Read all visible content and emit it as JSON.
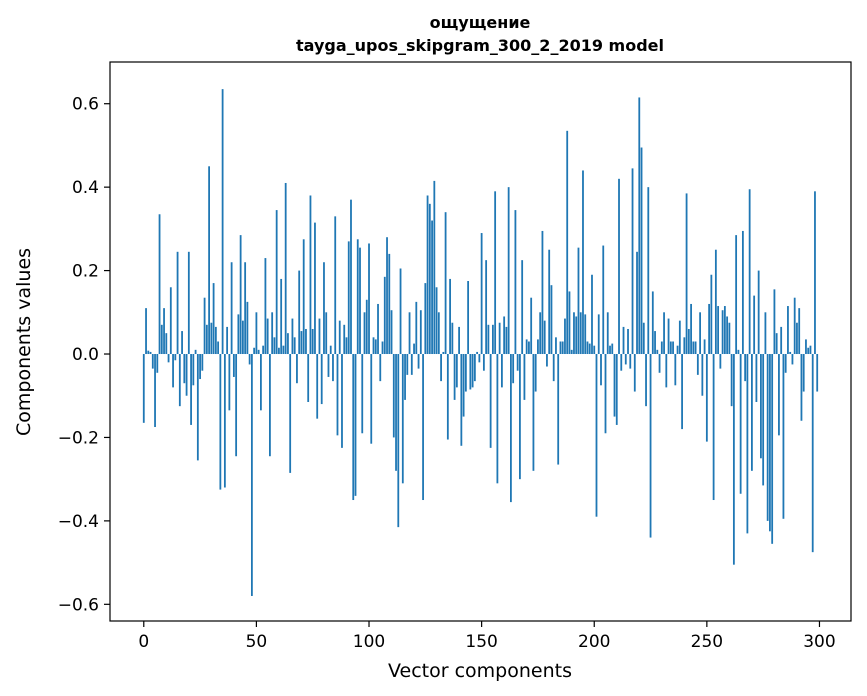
{
  "chart_data": {
    "type": "bar",
    "title_line1": "ощущение",
    "title_line2": "tayga_upos_skipgram_300_2_2019 model",
    "xlabel": "Vector components",
    "ylabel": "Components values",
    "xlim": [
      -15,
      314
    ],
    "ylim": [
      -0.64,
      0.7
    ],
    "xticks": [
      "0",
      "50",
      "100",
      "150",
      "200",
      "250",
      "300"
    ],
    "yticks": [
      "−0.6",
      "−0.4",
      "−0.2",
      "0.0",
      "0.2",
      "0.4",
      "0.6"
    ],
    "bar_color": "#1f77b4",
    "values": [
      -0.165,
      0.11,
      0.008,
      0.005,
      -0.035,
      -0.175,
      -0.045,
      0.335,
      0.07,
      0.11,
      0.05,
      -0.02,
      0.16,
      -0.08,
      -0.015,
      0.245,
      -0.125,
      0.055,
      -0.07,
      -0.1,
      0.245,
      -0.17,
      -0.075,
      0.01,
      -0.255,
      -0.06,
      -0.04,
      0.135,
      0.07,
      0.45,
      0.075,
      0.17,
      0.065,
      0.03,
      -0.325,
      0.635,
      -0.32,
      0.065,
      -0.135,
      0.22,
      -0.055,
      -0.245,
      0.095,
      0.285,
      0.08,
      0.22,
      0.125,
      -0.025,
      -0.58,
      0.015,
      0.1,
      0.01,
      -0.135,
      0.02,
      0.23,
      0.085,
      -0.245,
      0.1,
      0.04,
      0.345,
      0.015,
      0.18,
      0.02,
      0.41,
      0.05,
      -0.285,
      0.085,
      0.04,
      -0.07,
      0.2,
      0.055,
      0.275,
      0.06,
      -0.115,
      0.38,
      0.06,
      0.315,
      -0.155,
      0.085,
      -0.12,
      0.22,
      0.1,
      -0.055,
      0.02,
      -0.065,
      0.33,
      -0.195,
      0.08,
      -0.225,
      0.07,
      0.04,
      0.27,
      0.37,
      -0.35,
      -0.34,
      0.275,
      0.255,
      -0.19,
      0.1,
      0.13,
      0.265,
      -0.215,
      0.04,
      0.035,
      0.12,
      -0.065,
      0.03,
      0.185,
      0.28,
      0.24,
      0.105,
      -0.2,
      -0.28,
      -0.415,
      0.205,
      -0.31,
      -0.11,
      -0.05,
      0.1,
      -0.05,
      0.025,
      0.125,
      -0.035,
      0.105,
      -0.35,
      0.17,
      0.38,
      0.36,
      0.32,
      0.415,
      0.16,
      0.1,
      -0.065,
      0.005,
      0.34,
      -0.205,
      0.18,
      0.075,
      -0.11,
      -0.08,
      0.065,
      -0.22,
      -0.15,
      -0.09,
      0.175,
      -0.085,
      -0.08,
      -0.065,
      0.005,
      -0.02,
      0.29,
      -0.04,
      0.225,
      0.07,
      -0.225,
      0.07,
      0.39,
      -0.31,
      0.075,
      -0.08,
      0.09,
      0.065,
      0.4,
      -0.355,
      -0.07,
      0.345,
      -0.04,
      -0.3,
      0.225,
      -0.11,
      0.035,
      0.03,
      0.135,
      -0.28,
      -0.09,
      0.035,
      0.1,
      0.295,
      0.08,
      -0.03,
      0.25,
      0.165,
      -0.065,
      0.04,
      -0.265,
      0.03,
      0.03,
      0.085,
      0.535,
      0.15,
      0.01,
      0.1,
      0.09,
      0.255,
      0.1,
      0.44,
      0.095,
      0.03,
      0.025,
      0.19,
      0.02,
      -0.39,
      0.095,
      -0.075,
      0.26,
      -0.19,
      0.1,
      0.02,
      0.025,
      -0.15,
      -0.17,
      0.42,
      -0.04,
      0.065,
      -0.025,
      0.06,
      -0.035,
      0.445,
      -0.09,
      0.245,
      0.615,
      0.495,
      0.075,
      -0.125,
      0.4,
      -0.44,
      0.15,
      0.055,
      0.01,
      -0.045,
      0.03,
      0.1,
      -0.08,
      0.085,
      0.03,
      0.03,
      -0.075,
      0.02,
      0.08,
      -0.18,
      0.04,
      0.385,
      0.06,
      0.12,
      0.03,
      0.03,
      -0.05,
      0.1,
      -0.1,
      0.035,
      -0.21,
      0.12,
      0.19,
      -0.35,
      0.25,
      0.115,
      -0.035,
      0.105,
      0.115,
      0.09,
      0.075,
      -0.125,
      -0.505,
      0.285,
      0.01,
      -0.335,
      0.295,
      -0.065,
      -0.43,
      0.395,
      -0.28,
      0.14,
      -0.115,
      0.2,
      -0.25,
      -0.315,
      0.1,
      -0.4,
      -0.425,
      -0.455,
      0.155,
      0.05,
      -0.195,
      0.065,
      -0.395,
      -0.045,
      0.115,
      0.005,
      -0.025,
      0.135,
      0.075,
      0.11,
      -0.16,
      -0.09,
      0.035,
      0.015,
      0.02,
      -0.475,
      0.39,
      -0.09
    ]
  }
}
